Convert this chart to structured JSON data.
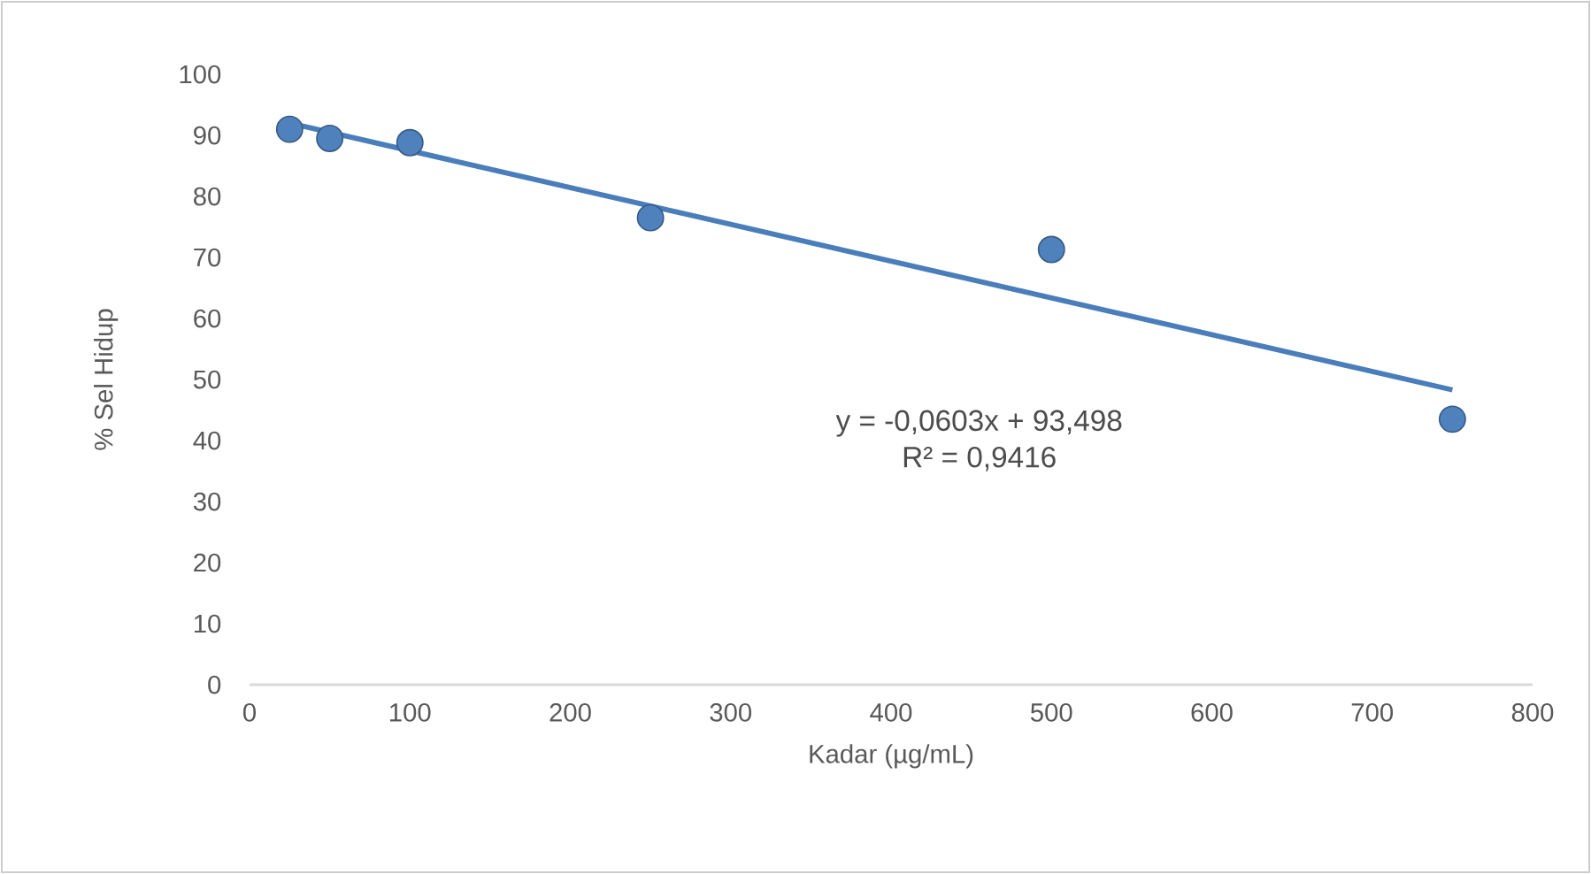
{
  "chart_data": {
    "type": "scatter",
    "xlabel": "Kadar (µg/mL)",
    "ylabel": "% Sel Hidup",
    "xlim": [
      0,
      800
    ],
    "xticks": [
      0,
      100,
      200,
      300,
      400,
      500,
      600,
      700,
      800
    ],
    "ylim": [
      0,
      100
    ],
    "yticks": [
      0,
      10,
      20,
      30,
      40,
      50,
      60,
      70,
      80,
      90,
      100
    ],
    "x": [
      25,
      50,
      100,
      250,
      500,
      750
    ],
    "series": [
      {
        "color": "#4f81bd",
        "values": [
          91,
          89.5,
          88.8,
          76.5,
          71.3,
          43.5
        ],
        "marker": "circle"
      },
      {
        "type": "line",
        "color": "#4a7ebb",
        "x": [
          25,
          750
        ],
        "values": [
          92,
          48.3
        ],
        "marker": "none",
        "line_style": "solid"
      }
    ],
    "annotations": [
      "y = -0,0603x + 93,498",
      "R² = 0,9416"
    ],
    "grid": false
  }
}
